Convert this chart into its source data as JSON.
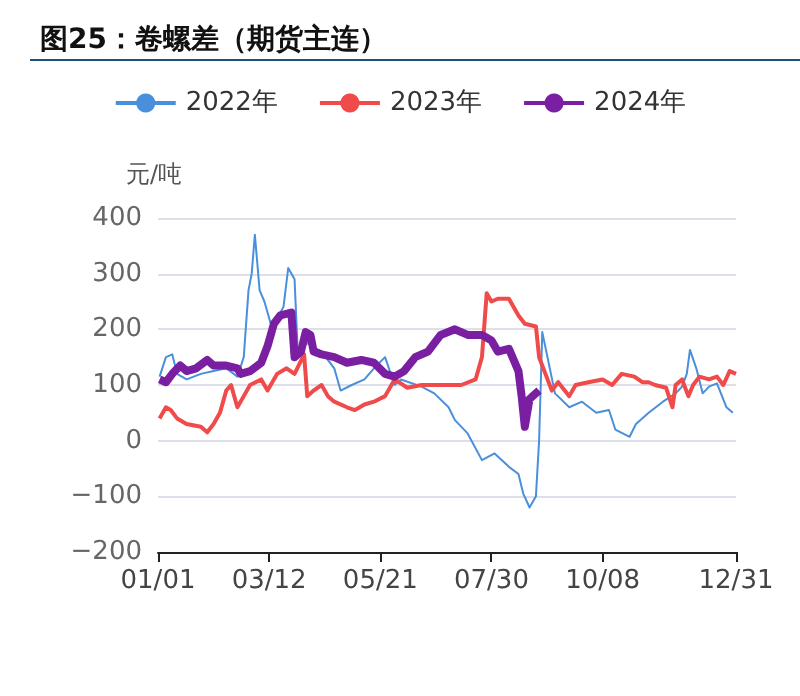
{
  "chart_data": {
    "type": "line",
    "title": "图25：卷螺差（期货主连）",
    "ylabel": "元/吨",
    "xlim": [
      "--01-01",
      "--12-31"
    ],
    "xticks": [
      {
        "value": "--01-01",
        "label": "01/01"
      },
      {
        "value": "--03-12",
        "label": "03/12"
      },
      {
        "value": "--05-21",
        "label": "05/21"
      },
      {
        "value": "--07-30",
        "label": "07/30"
      },
      {
        "value": "--10-08",
        "label": "10/08"
      },
      {
        "value": "--12-31",
        "label": "12/31"
      }
    ],
    "ylim": [
      -200,
      400
    ],
    "yticks": [
      -200,
      -100,
      0,
      100,
      200,
      300,
      400
    ],
    "grid": "y",
    "legend": "top",
    "series": [
      {
        "name": "2022年",
        "color": "#4a8fdc",
        "x": [
          "--01-02",
          "--01-06",
          "--01-10",
          "--01-13",
          "--01-19",
          "--01-28",
          "--02-05",
          "--02-13",
          "--02-20",
          "--02-24",
          "--02-27",
          "--03-01",
          "--03-03",
          "--03-06",
          "--03-09",
          "--03-13",
          "--03-17",
          "--03-21",
          "--03-24",
          "--03-28",
          "--03-30",
          "--04-05",
          "--04-14",
          "--04-22",
          "--04-26",
          "--05-03",
          "--05-11",
          "--05-17",
          "--05-24",
          "--05-30",
          "--06-03",
          "--06-16",
          "--06-24",
          "--07-03",
          "--07-07",
          "--07-15",
          "--07-24",
          "--08-01",
          "--08-10",
          "--08-16",
          "--08-19",
          "--08-23",
          "--08-27",
          "--08-29",
          "--08-31",
          "--09-08",
          "--09-17",
          "--09-25",
          "--10-04",
          "--10-12",
          "--10-16",
          "--10-25",
          "--10-29",
          "--11-06",
          "--11-15",
          "--11-23",
          "--11-27",
          "--11-30",
          "--12-02",
          "--12-06",
          "--12-10",
          "--12-14",
          "--12-19",
          "--12-25",
          "--12-29"
        ],
        "values": [
          115,
          150,
          155,
          120,
          110,
          120,
          125,
          130,
          115,
          150,
          270,
          300,
          370,
          270,
          250,
          210,
          220,
          240,
          310,
          290,
          160,
          175,
          160,
          130,
          90,
          100,
          110,
          130,
          150,
          100,
          110,
          97,
          85,
          60,
          37,
          13,
          -35,
          -23,
          -47,
          -60,
          -95,
          -120,
          -100,
          0,
          195,
          85,
          60,
          70,
          50,
          55,
          20,
          7,
          30,
          50,
          70,
          85,
          97,
          120,
          163,
          130,
          85,
          97,
          103,
          60,
          50
        ]
      },
      {
        "name": "2023年",
        "color": "#f04a4a",
        "x": [
          "--01-02",
          "--01-06",
          "--01-09",
          "--01-13",
          "--01-19",
          "--01-28",
          "--02-01",
          "--02-05",
          "--02-09",
          "--02-13",
          "--02-16",
          "--02-20",
          "--02-24",
          "--02-28",
          "--03-07",
          "--03-11",
          "--03-17",
          "--03-23",
          "--03-28",
          "--04-03",
          "--04-05",
          "--04-09",
          "--04-14",
          "--04-18",
          "--04-22",
          "--04-30",
          "--05-05",
          "--05-11",
          "--05-17",
          "--05-24",
          "--05-30",
          "--06-07",
          "--06-16",
          "--06-24",
          "--07-03",
          "--07-11",
          "--07-20",
          "--07-24",
          "--07-27",
          "--07-30",
          "--08-03",
          "--08-10",
          "--08-16",
          "--08-20",
          "--08-27",
          "--08-29",
          "--09-02",
          "--09-06",
          "--09-10",
          "--09-17",
          "--09-21",
          "--09-29",
          "--10-08",
          "--10-14",
          "--10-20",
          "--10-28",
          "--11-02",
          "--11-06",
          "--11-10",
          "--11-17",
          "--11-21",
          "--11-23",
          "--11-27",
          "--12-01",
          "--12-04",
          "--12-08",
          "--12-14",
          "--12-19",
          "--12-23",
          "--12-27",
          "--12-31"
        ],
        "values": [
          40,
          60,
          55,
          40,
          30,
          25,
          15,
          30,
          50,
          90,
          100,
          60,
          80,
          100,
          110,
          90,
          120,
          130,
          120,
          155,
          80,
          90,
          100,
          80,
          70,
          60,
          55,
          65,
          70,
          80,
          110,
          95,
          100,
          100,
          100,
          100,
          110,
          150,
          265,
          250,
          255,
          255,
          225,
          210,
          205,
          150,
          120,
          90,
          105,
          80,
          100,
          105,
          110,
          100,
          120,
          115,
          105,
          105,
          100,
          95,
          60,
          100,
          110,
          80,
          100,
          115,
          110,
          115,
          100,
          125,
          120
        ]
      },
      {
        "name": "2024年",
        "color": "#7b1fa2",
        "x": [
          "--01-02",
          "--01-06",
          "--01-10",
          "--01-15",
          "--01-19",
          "--01-25",
          "--02-01",
          "--02-05",
          "--02-13",
          "--02-20",
          "--02-22",
          "--02-28",
          "--03-07",
          "--03-11",
          "--03-15",
          "--03-19",
          "--03-26",
          "--03-28",
          "--04-01",
          "--04-04",
          "--04-07",
          "--04-09",
          "--04-14",
          "--04-22",
          "--04-30",
          "--05-09",
          "--05-17",
          "--05-24",
          "--05-30",
          "--06-05",
          "--06-12",
          "--06-20",
          "--06-28",
          "--07-07",
          "--07-15",
          "--07-24",
          "--07-30",
          "--08-03",
          "--08-10",
          "--08-16",
          "--08-18",
          "--08-20",
          "--08-23",
          "--08-27",
          "--08-29"
        ],
        "values": [
          110,
          105,
          120,
          135,
          125,
          130,
          145,
          135,
          135,
          130,
          120,
          125,
          140,
          170,
          210,
          225,
          230,
          150,
          160,
          195,
          190,
          160,
          155,
          150,
          140,
          145,
          140,
          120,
          115,
          125,
          150,
          160,
          190,
          200,
          190,
          190,
          180,
          160,
          165,
          125,
          80,
          25,
          75,
          85,
          90
        ]
      }
    ]
  }
}
